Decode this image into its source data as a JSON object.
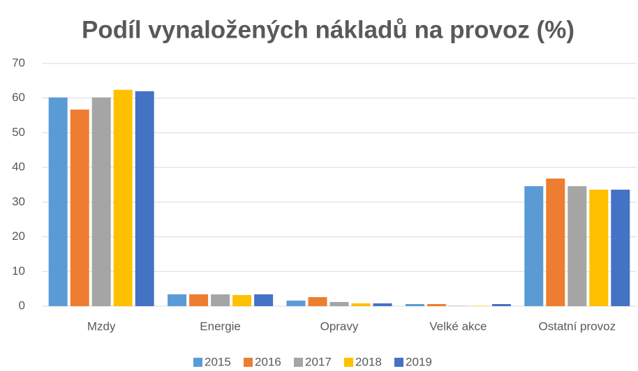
{
  "chart_data": {
    "type": "bar",
    "title": "Podíl vynaložených nákladů na provoz (%)",
    "categories": [
      "Mzdy",
      "Energie",
      "Opravy",
      "Velké akce",
      "Ostatní provoz"
    ],
    "series": [
      {
        "name": "2015",
        "color": "#5b9bd5",
        "values": [
          60.2,
          3.4,
          1.6,
          0.6,
          34.6
        ]
      },
      {
        "name": "2016",
        "color": "#ed7d31",
        "values": [
          56.7,
          3.4,
          2.6,
          0.6,
          36.8
        ]
      },
      {
        "name": "2017",
        "color": "#a5a5a5",
        "values": [
          60.2,
          3.4,
          1.2,
          0.1,
          34.6
        ]
      },
      {
        "name": "2018",
        "color": "#ffc000",
        "values": [
          62.4,
          3.2,
          0.8,
          0.1,
          33.6
        ]
      },
      {
        "name": "2019",
        "color": "#4472c4",
        "values": [
          62.0,
          3.4,
          0.8,
          0.6,
          33.6
        ]
      }
    ],
    "ylim": [
      0,
      70
    ],
    "yticks": [
      0,
      10,
      20,
      30,
      40,
      50,
      60,
      70
    ],
    "grid": true,
    "legend": "bottom"
  }
}
